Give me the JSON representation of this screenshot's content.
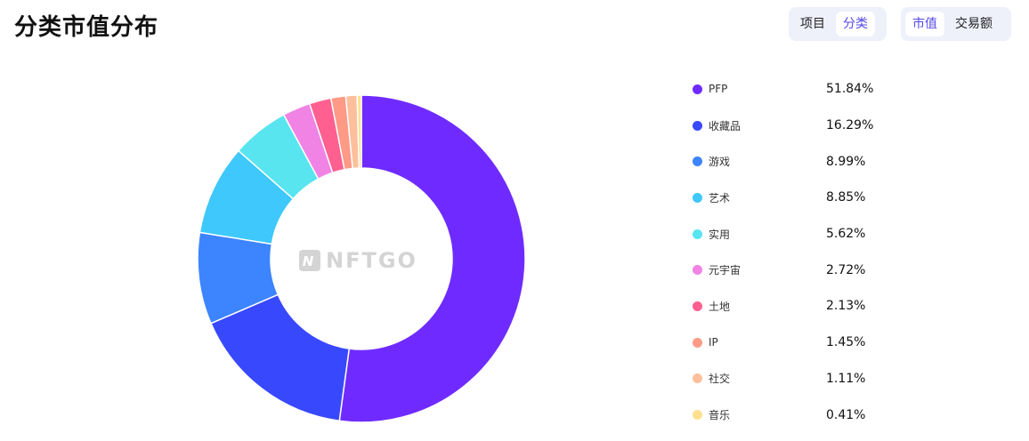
{
  "title": "分类市值分布",
  "toggle_view": {
    "option_project": "项目",
    "option_category": "分类",
    "active": "分类"
  },
  "toggle_metric": {
    "option_market_cap": "市值",
    "option_volume": "交易额",
    "active": "市值"
  },
  "watermark": "NFTGO",
  "colors": {
    "PFP": "#6f2bff",
    "收藏品": "#3848fd",
    "游戏": "#3d84ff",
    "艺术": "#3ec8fb",
    "实用": "#58e5ef",
    "元宇宙": "#f183e4",
    "土地": "#ff6090",
    "IP": "#ff9a86",
    "社交": "#ffbf9c",
    "音乐": "#ffe08f"
  },
  "chart_data": {
    "type": "pie",
    "donut": true,
    "categories": [
      "PFP",
      "收藏品",
      "游戏",
      "艺术",
      "实用",
      "元宇宙",
      "土地",
      "IP",
      "社交",
      "音乐"
    ],
    "values": [
      51.84,
      16.29,
      8.99,
      8.85,
      5.62,
      2.72,
      2.13,
      1.45,
      1.11,
      0.41
    ],
    "value_labels": [
      "51.84%",
      "16.29%",
      "8.99%",
      "8.85%",
      "5.62%",
      "2.72%",
      "2.13%",
      "1.45%",
      "1.11%",
      "0.41%"
    ],
    "legend_position": "right"
  }
}
